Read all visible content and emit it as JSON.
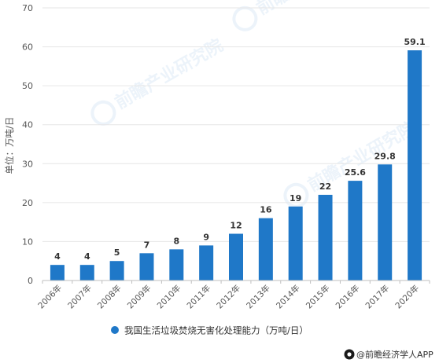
{
  "chart_data": {
    "type": "bar",
    "categories": [
      "2006年",
      "2007年",
      "2008年",
      "2009年",
      "2010年",
      "2011年",
      "2012年",
      "2013年",
      "2014年",
      "2015年",
      "2016年",
      "2017年",
      "2020年"
    ],
    "series": [
      {
        "name": "我国生活垃圾焚烧无害化处理能力（万吨/日）",
        "values": [
          4,
          4,
          5,
          7,
          8,
          9,
          12,
          16,
          19,
          22,
          25.6,
          29.8,
          59.1
        ]
      }
    ],
    "data_labels": [
      "4",
      "4",
      "5",
      "7",
      "8",
      "9",
      "12",
      "16",
      "19",
      "22",
      "25.6",
      "29.8",
      "59.1"
    ],
    "ylabel": "单位：万吨/日",
    "ylim": [
      0,
      70
    ],
    "yticks": [
      0,
      10,
      20,
      30,
      40,
      50,
      60,
      70
    ],
    "grid": true,
    "legend_position": "bottom",
    "bar_color": "#1f78c8"
  },
  "source": {
    "icon": "camera-circle-icon",
    "text": "@前瞻经济学人APP"
  },
  "watermark": {
    "text": "前瞻产业研究院"
  }
}
